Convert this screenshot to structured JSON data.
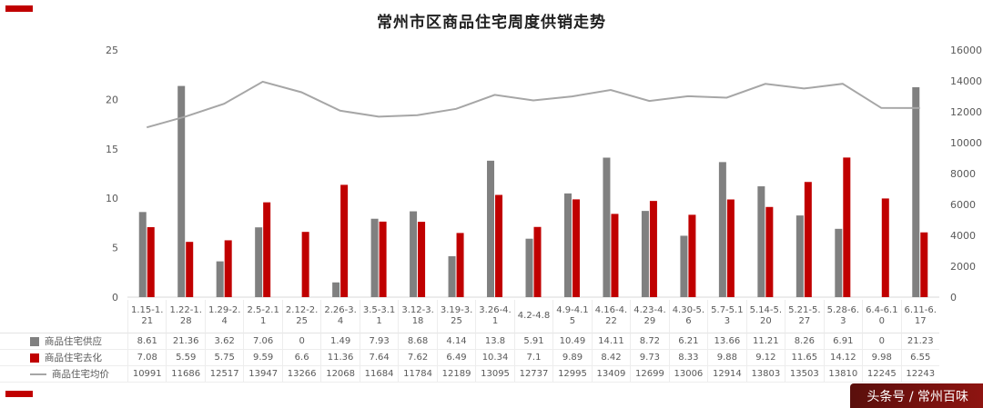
{
  "title": "常州市区商品住宅周度供销走势",
  "watermark": {
    "text": "头条号 / 常州百味"
  },
  "chart_data": {
    "type": "bar+line",
    "title": "常州市区商品住宅周度供销走势",
    "grid": false,
    "legend_position": "table-left",
    "categories": [
      "1.15-1.21",
      "1.22-1.28",
      "1.29-2.4",
      "2.5-2.11",
      "2.12-2.25",
      "2.26-3.4",
      "3.5-3.11",
      "3.12-3.18",
      "3.19-3.25",
      "3.26-4.1",
      "4.2-4.8",
      "4.9-4.15",
      "4.16-4.22",
      "4.23-4.29",
      "4.30-5.6",
      "5.7-5.13",
      "5.14-5.20",
      "5.21-5.27",
      "5.28-6.3",
      "6.4-6.10",
      "6.11-6.17"
    ],
    "series": [
      {
        "name": "商品住宅供应",
        "type": "bar",
        "axis": "left",
        "color": "#808080",
        "values": [
          8.61,
          21.36,
          3.62,
          7.06,
          0,
          1.49,
          7.93,
          8.68,
          4.14,
          13.8,
          5.91,
          10.49,
          14.11,
          8.72,
          6.21,
          13.66,
          11.21,
          8.26,
          6.91,
          0,
          21.23
        ]
      },
      {
        "name": "商品住宅去化",
        "type": "bar",
        "axis": "left",
        "color": "#c00000",
        "values": [
          7.08,
          5.59,
          5.75,
          9.59,
          6.6,
          11.36,
          7.64,
          7.62,
          6.49,
          10.34,
          7.1,
          9.89,
          8.42,
          9.73,
          8.33,
          9.88,
          9.12,
          11.65,
          14.12,
          9.98,
          6.55
        ]
      },
      {
        "name": "商品住宅均价",
        "type": "line",
        "axis": "right",
        "color": "#a6a6a6",
        "values": [
          10991,
          11686,
          12517,
          13947,
          13266,
          12068,
          11684,
          11784,
          12189,
          13095,
          12737,
          12995,
          13409,
          12699,
          13006,
          12914,
          13803,
          13503,
          13810,
          12245,
          12243
        ]
      }
    ],
    "left_axis": {
      "min": 0,
      "max": 25,
      "step": 5,
      "ticks": [
        0,
        5,
        10,
        15,
        20,
        25
      ]
    },
    "right_axis": {
      "min": 0,
      "max": 16000,
      "step": 2000,
      "ticks": [
        0,
        2000,
        4000,
        6000,
        8000,
        10000,
        12000,
        14000,
        16000
      ]
    }
  }
}
